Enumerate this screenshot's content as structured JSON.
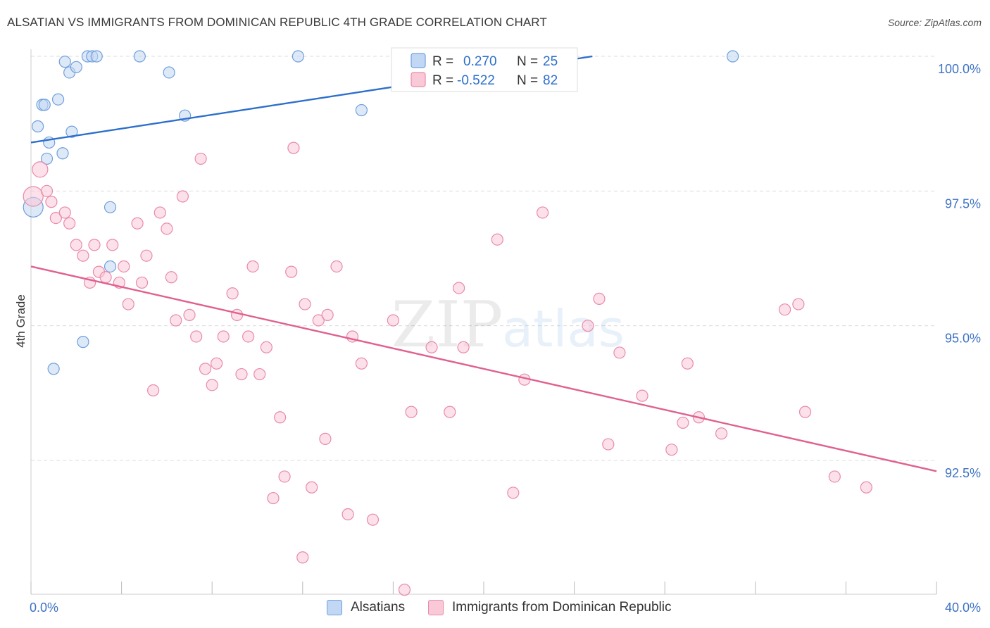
{
  "title": "ALSATIAN VS IMMIGRANTS FROM DOMINICAN REPUBLIC 4TH GRADE CORRELATION CHART",
  "source": "Source: ZipAtlas.com",
  "watermark": {
    "zip": "ZIP",
    "atlas": "atlas"
  },
  "chart_data": {
    "type": "scatter",
    "ylabel": "4th Grade",
    "xlim": [
      0,
      40
    ],
    "ylim": [
      90.2,
      100.2
    ],
    "x_tick_labels": [
      "0.0%",
      "40.0%"
    ],
    "y_ticks": [
      {
        "value": 100.0,
        "label": "100.0%"
      },
      {
        "value": 97.5,
        "label": "97.5%"
      },
      {
        "value": 95.0,
        "label": "95.0%"
      },
      {
        "value": 92.5,
        "label": "92.5%"
      }
    ],
    "grid": true,
    "legend_top": {
      "rows": [
        {
          "r_label": "R =",
          "r_value": "0.270",
          "n_label": "N =",
          "n_value": "25"
        },
        {
          "r_label": "R =",
          "r_value": "-0.522",
          "n_label": "N =",
          "n_value": "82"
        }
      ]
    },
    "series": [
      {
        "name": "Alsatians",
        "color": "#6f9fdd",
        "fill": "#c2d7f3",
        "line_color": "#2c6fcb",
        "trend": {
          "x": [
            0,
            24.8
          ],
          "y": [
            98.4,
            100.0
          ]
        },
        "points": [
          [
            0.1,
            97.2
          ],
          [
            0.3,
            98.7
          ],
          [
            0.5,
            99.1
          ],
          [
            0.6,
            99.1
          ],
          [
            0.7,
            98.1
          ],
          [
            0.8,
            98.4
          ],
          [
            1.0,
            94.2
          ],
          [
            1.2,
            99.2
          ],
          [
            1.4,
            98.2
          ],
          [
            1.5,
            99.9
          ],
          [
            1.7,
            99.7
          ],
          [
            1.8,
            98.6
          ],
          [
            2.0,
            99.8
          ],
          [
            2.3,
            94.7
          ],
          [
            2.5,
            100.0
          ],
          [
            2.7,
            100.0
          ],
          [
            2.9,
            100.0
          ],
          [
            3.5,
            97.2
          ],
          [
            3.5,
            96.1
          ],
          [
            4.8,
            100.0
          ],
          [
            6.1,
            99.7
          ],
          [
            6.8,
            98.9
          ],
          [
            11.8,
            100.0
          ],
          [
            14.6,
            99.0
          ],
          [
            31.0,
            100.0
          ]
        ]
      },
      {
        "name": "Immigrants from Dominican Republic",
        "color": "#e98aa8",
        "fill": "#f9c9d8",
        "line_color": "#e0608f",
        "trend": {
          "x": [
            0,
            40
          ],
          "y": [
            96.1,
            92.3
          ]
        },
        "points": [
          [
            0.1,
            97.4
          ],
          [
            0.4,
            97.9
          ],
          [
            0.7,
            97.5
          ],
          [
            0.9,
            97.3
          ],
          [
            1.1,
            97.0
          ],
          [
            1.5,
            97.1
          ],
          [
            1.7,
            96.9
          ],
          [
            2.0,
            96.5
          ],
          [
            2.3,
            96.3
          ],
          [
            2.6,
            95.8
          ],
          [
            2.8,
            96.5
          ],
          [
            3.0,
            96.0
          ],
          [
            3.3,
            95.9
          ],
          [
            3.6,
            96.5
          ],
          [
            3.9,
            95.8
          ],
          [
            4.1,
            96.1
          ],
          [
            4.3,
            95.4
          ],
          [
            4.7,
            96.9
          ],
          [
            4.9,
            95.8
          ],
          [
            5.1,
            96.3
          ],
          [
            5.4,
            93.8
          ],
          [
            5.7,
            97.1
          ],
          [
            6.0,
            96.8
          ],
          [
            6.2,
            95.9
          ],
          [
            6.4,
            95.1
          ],
          [
            6.7,
            97.4
          ],
          [
            7.0,
            95.2
          ],
          [
            7.3,
            94.8
          ],
          [
            7.5,
            98.1
          ],
          [
            7.7,
            94.2
          ],
          [
            8.0,
            93.9
          ],
          [
            8.2,
            94.3
          ],
          [
            8.5,
            94.8
          ],
          [
            8.9,
            95.6
          ],
          [
            9.1,
            95.2
          ],
          [
            9.3,
            94.1
          ],
          [
            9.6,
            94.8
          ],
          [
            9.8,
            96.1
          ],
          [
            10.1,
            94.1
          ],
          [
            10.4,
            94.6
          ],
          [
            10.7,
            91.8
          ],
          [
            11.0,
            93.3
          ],
          [
            11.2,
            92.2
          ],
          [
            11.5,
            96.0
          ],
          [
            11.6,
            98.3
          ],
          [
            12.0,
            90.7
          ],
          [
            12.1,
            95.4
          ],
          [
            12.4,
            92.0
          ],
          [
            12.7,
            95.1
          ],
          [
            13.0,
            92.9
          ],
          [
            13.1,
            95.2
          ],
          [
            13.5,
            96.1
          ],
          [
            14.0,
            91.5
          ],
          [
            14.2,
            94.8
          ],
          [
            14.6,
            94.3
          ],
          [
            15.1,
            91.4
          ],
          [
            16.0,
            95.1
          ],
          [
            16.5,
            90.1
          ],
          [
            16.8,
            93.4
          ],
          [
            17.7,
            94.6
          ],
          [
            18.5,
            93.4
          ],
          [
            18.9,
            95.7
          ],
          [
            19.1,
            94.6
          ],
          [
            20.6,
            96.6
          ],
          [
            21.3,
            91.9
          ],
          [
            21.8,
            94.0
          ],
          [
            22.6,
            97.1
          ],
          [
            24.6,
            95.0
          ],
          [
            25.1,
            95.5
          ],
          [
            25.5,
            92.8
          ],
          [
            26.0,
            94.5
          ],
          [
            27.0,
            93.7
          ],
          [
            28.3,
            92.7
          ],
          [
            28.8,
            93.2
          ],
          [
            29.0,
            94.3
          ],
          [
            29.5,
            93.3
          ],
          [
            30.5,
            93.0
          ],
          [
            33.3,
            95.3
          ],
          [
            33.9,
            95.4
          ],
          [
            34.2,
            93.4
          ],
          [
            35.5,
            92.2
          ],
          [
            36.9,
            92.0
          ]
        ]
      }
    ]
  }
}
